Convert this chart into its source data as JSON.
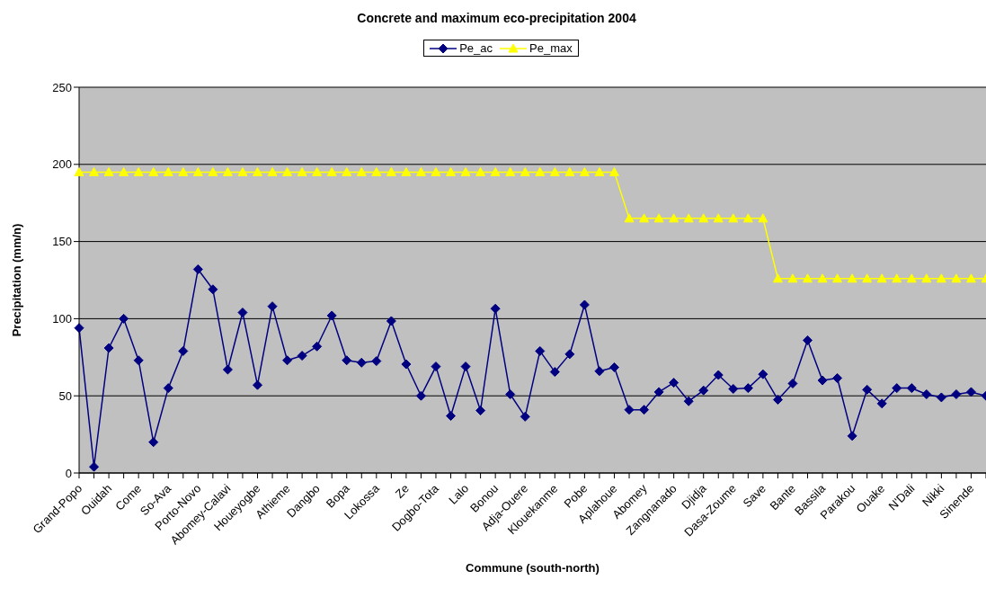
{
  "chart_data": {
    "type": "line",
    "title": "Concrete and maximum eco-precipitation 2004",
    "xlabel": "Commune (south-north)",
    "ylabel": "Precipitation (mm/n)",
    "categories": [
      "Grand-Popo",
      null,
      "Ouidah",
      null,
      "Come",
      null,
      "So-Ava",
      null,
      "Porto-Novo",
      null,
      "Abomey-Calavi",
      null,
      "Houeyogbe",
      null,
      "Athieme",
      null,
      "Dangbo",
      null,
      "Bopa",
      null,
      "Lokossa",
      null,
      "Ze",
      null,
      "Dogbo-Tota",
      null,
      "Lalo",
      null,
      "Bonou",
      null,
      "Adja-Ouere",
      null,
      "Klouekanme",
      null,
      "Pobe",
      null,
      "Aplahoue",
      null,
      "Abomey",
      null,
      "Zangnanado",
      null,
      "Djidja",
      null,
      "Dasa-Zoume",
      null,
      "Save",
      null,
      "Bante",
      null,
      "Bassila",
      null,
      "Parakou",
      null,
      "Ouake",
      null,
      "N'Dali",
      null,
      "Nikki",
      null,
      "Sinende",
      null
    ],
    "series": [
      {
        "name": "Pe_ac",
        "color": "#000080",
        "marker": "diamond",
        "values": [
          94,
          4,
          81,
          100,
          73,
          20,
          55,
          79,
          132,
          119,
          67,
          104,
          57,
          108,
          73,
          76,
          82,
          102,
          73,
          71.5,
          72.5,
          98.5,
          70.5,
          50,
          69,
          37,
          69,
          40.5,
          106.5,
          51,
          36.5,
          79,
          65.5,
          77,
          109,
          66,
          68.5,
          41,
          41,
          52.5,
          58.5,
          46.5,
          53.5,
          63.5,
          54.5,
          55,
          64,
          47.5,
          58,
          86,
          60,
          61.5,
          24,
          54,
          45,
          55,
          55,
          51,
          49,
          51,
          52.5,
          50
        ]
      },
      {
        "name": "Pe_max",
        "color": "#ffff00",
        "marker": "triangle",
        "values": [
          195,
          195,
          195,
          195,
          195,
          195,
          195,
          195,
          195,
          195,
          195,
          195,
          195,
          195,
          195,
          195,
          195,
          195,
          195,
          195,
          195,
          195,
          195,
          195,
          195,
          195,
          195,
          195,
          195,
          195,
          195,
          195,
          195,
          195,
          195,
          195,
          195,
          165,
          165,
          165,
          165,
          165,
          165,
          165,
          165,
          165,
          165,
          126,
          126,
          126,
          126,
          126,
          126,
          126,
          126,
          126,
          126,
          126,
          126,
          126,
          126,
          126
        ]
      }
    ],
    "ylim": [
      0,
      250
    ],
    "yticks": [
      0,
      50,
      100,
      150,
      200,
      250
    ],
    "grid": "y",
    "legend": "top",
    "line_style": "solid"
  }
}
